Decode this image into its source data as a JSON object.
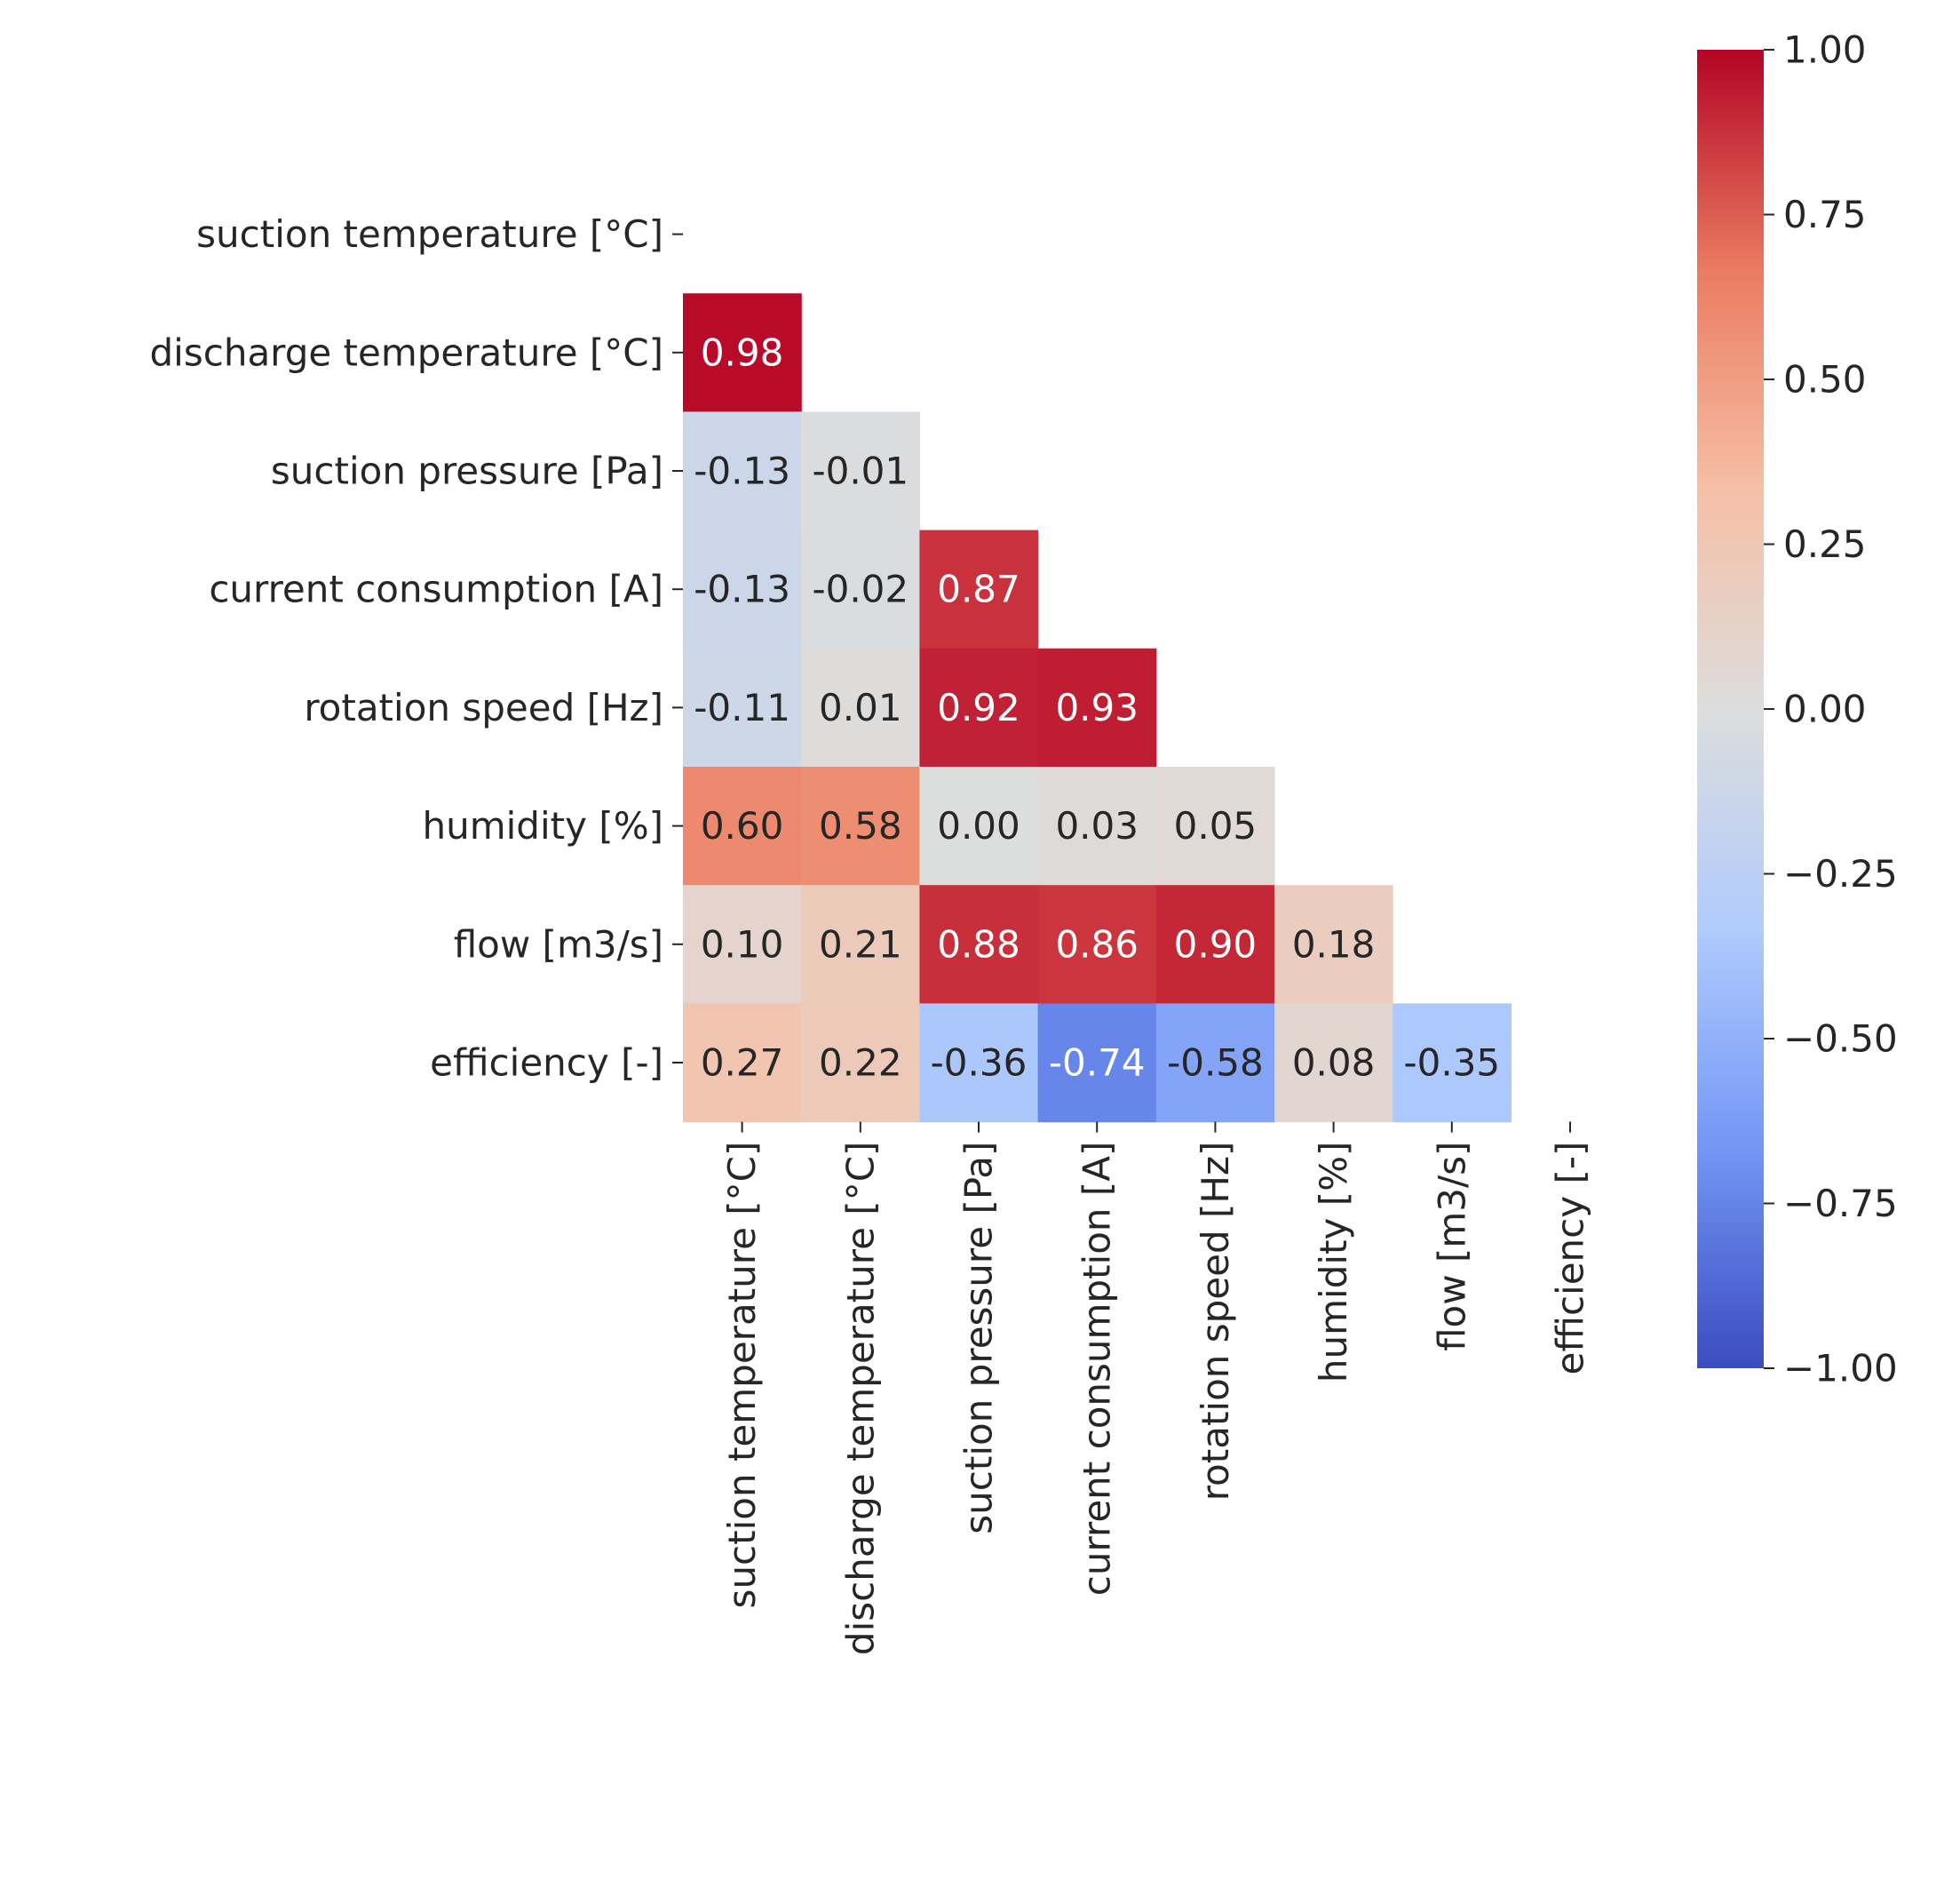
{
  "chart_data": {
    "type": "heatmap",
    "title": "",
    "xlabel": "",
    "ylabel": "",
    "variables": [
      "suction temperature [°C]",
      "discharge temperature [°C]",
      "suction pressure [Pa]",
      "current consumption [A]",
      "rotation speed [Hz]",
      "humidity [%]",
      "flow [m3/s]",
      "efficiency [-]"
    ],
    "mask": "upper-triangle-including-diagonal",
    "matrix": [
      [
        null,
        null,
        null,
        null,
        null,
        null,
        null,
        null
      ],
      [
        0.98,
        null,
        null,
        null,
        null,
        null,
        null,
        null
      ],
      [
        -0.13,
        -0.01,
        null,
        null,
        null,
        null,
        null,
        null
      ],
      [
        -0.13,
        -0.02,
        0.87,
        null,
        null,
        null,
        null,
        null
      ],
      [
        -0.11,
        0.01,
        0.92,
        0.93,
        null,
        null,
        null,
        null
      ],
      [
        0.6,
        0.58,
        0.0,
        0.03,
        0.05,
        null,
        null,
        null
      ],
      [
        0.1,
        0.21,
        0.88,
        0.86,
        0.9,
        0.18,
        null,
        null
      ],
      [
        0.27,
        0.22,
        -0.36,
        -0.74,
        -0.58,
        0.08,
        -0.35,
        null
      ]
    ],
    "cell_labels": [
      [
        null,
        null,
        null,
        null,
        null,
        null,
        null,
        null
      ],
      [
        "0.98",
        null,
        null,
        null,
        null,
        null,
        null,
        null
      ],
      [
        "-0.13",
        "-0.01",
        null,
        null,
        null,
        null,
        null,
        null
      ],
      [
        "-0.13",
        "-0.02",
        "0.87",
        null,
        null,
        null,
        null,
        null
      ],
      [
        "-0.11",
        "0.01",
        "0.92",
        "0.93",
        null,
        null,
        null,
        null
      ],
      [
        "0.60",
        "0.58",
        "0.00",
        "0.03",
        "0.05",
        null,
        null,
        null
      ],
      [
        "0.10",
        "0.21",
        "0.88",
        "0.86",
        "0.90",
        "0.18",
        null,
        null
      ],
      [
        "0.27",
        "0.22",
        "-0.36",
        "-0.74",
        "-0.58",
        "0.08",
        "-0.35",
        null
      ]
    ],
    "colormap": "coolwarm",
    "colormap_stops": [
      "#3b4cc0",
      "#7396f5",
      "#b0cbfc",
      "#dcdddd",
      "#f6bfa6",
      "#ea7b60",
      "#b40426"
    ],
    "vmin": -1.0,
    "vmax": 1.0,
    "colorbar": {
      "position": "right",
      "ticks": [
        1.0,
        0.75,
        0.5,
        0.25,
        0.0,
        -0.25,
        -0.5,
        -0.75,
        -1.0
      ],
      "tick_labels": [
        "1.00",
        "0.75",
        "0.50",
        "0.25",
        "0.00",
        "−0.25",
        "−0.50",
        "−0.75",
        "−1.00"
      ]
    }
  }
}
